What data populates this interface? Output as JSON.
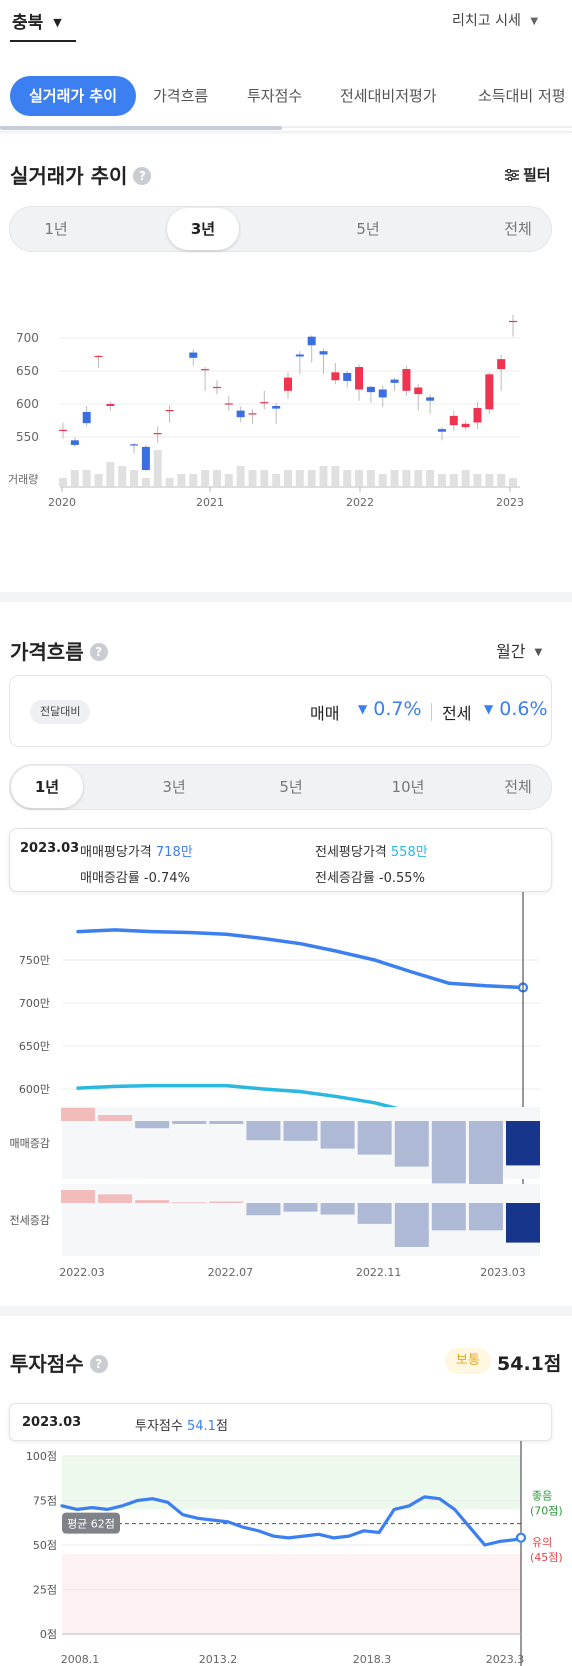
{
  "header": {
    "region": "충북",
    "menu": "리치고 시세"
  },
  "tabs": [
    "실거래가 추이",
    "가격흐름",
    "투자점수",
    "전세대비저평가",
    "소득대비 저평"
  ],
  "trade": {
    "title": "실거래가 추이",
    "filter": "필터",
    "periods": [
      "1년",
      "3년",
      "5년",
      "전체"
    ],
    "selected_period": "3년",
    "volume_label": "거래량"
  },
  "flow": {
    "title": "가격흐름",
    "period_select": "월간",
    "compare_badge": "전달대비",
    "sale_label": "매매",
    "sale_change": "0.7%",
    "jeonse_label": "전세",
    "jeonse_change": "0.6%",
    "periods": [
      "1년",
      "3년",
      "5년",
      "10년",
      "전체"
    ],
    "selected_period": "1년",
    "tooltip": {
      "date": "2023.03",
      "sale_avg_label": "매매평당가격",
      "sale_avg_value": "718만",
      "jeonse_avg_label": "전세평당가격",
      "jeonse_avg_value": "558만",
      "sale_rate": "매매증감률 -0.74%",
      "jeonse_rate": "전세증감률 -0.55%"
    },
    "sale_bar_label": "매매증감",
    "jeonse_bar_label": "전세증감"
  },
  "score": {
    "title": "투자점수",
    "badge": "보통",
    "value": "54.1점",
    "tooltip_date": "2023.03",
    "tooltip_label": "투자점수",
    "tooltip_value": "54.1",
    "tooltip_unit": "점",
    "avg_label": "평균 62점",
    "good_label": "좋음",
    "good_value": "(70점)",
    "caution_label": "유의",
    "caution_value": "(45점)"
  },
  "colors": {
    "accent": "#3b7ff0",
    "up": "#f0334f",
    "down": "#3b6ee0",
    "jeonse": "#2bb8e0",
    "bar_neg": "#aeb9d6",
    "bar_pos": "#f2bcbc",
    "bar_current": "#17358a"
  },
  "chart_data": [
    {
      "type": "candlestick",
      "title": "실거래가 추이",
      "x_ticks": [
        "2020",
        "2021",
        "2022",
        "2023"
      ],
      "y_ticks": [
        700,
        650,
        600,
        550
      ],
      "ylim": [
        530,
        735
      ],
      "candles": [
        {
          "i": 0,
          "o": 560,
          "c": 560,
          "h": 572,
          "l": 548
        },
        {
          "i": 1,
          "o": 545,
          "c": 538,
          "h": 550,
          "l": 535
        },
        {
          "i": 2,
          "o": 588,
          "c": 571,
          "h": 597,
          "l": 566
        },
        {
          "i": 3,
          "o": 672,
          "c": 672,
          "h": 674,
          "l": 655
        },
        {
          "i": 4,
          "o": 597,
          "c": 600,
          "h": 604,
          "l": 590
        },
        {
          "i": 6,
          "o": 538,
          "c": 536,
          "h": 541,
          "l": 525
        },
        {
          "i": 7,
          "o": 535,
          "c": 500,
          "h": 538,
          "l": 498
        },
        {
          "i": 8,
          "o": 555,
          "c": 555,
          "h": 566,
          "l": 541
        },
        {
          "i": 9,
          "o": 588,
          "c": 590,
          "h": 598,
          "l": 572
        },
        {
          "i": 11,
          "o": 678,
          "c": 670,
          "h": 683,
          "l": 658
        },
        {
          "i": 12,
          "o": 652,
          "c": 652,
          "h": 656,
          "l": 620
        },
        {
          "i": 13,
          "o": 625,
          "c": 625,
          "h": 636,
          "l": 615
        },
        {
          "i": 14,
          "o": 600,
          "c": 600,
          "h": 612,
          "l": 590
        },
        {
          "i": 15,
          "o": 590,
          "c": 580,
          "h": 596,
          "l": 572
        },
        {
          "i": 16,
          "o": 585,
          "c": 585,
          "h": 592,
          "l": 570
        },
        {
          "i": 17,
          "o": 600,
          "c": 602,
          "h": 620,
          "l": 592
        },
        {
          "i": 18,
          "o": 597,
          "c": 593,
          "h": 602,
          "l": 570
        },
        {
          "i": 19,
          "o": 620,
          "c": 640,
          "h": 648,
          "l": 608
        },
        {
          "i": 20,
          "o": 675,
          "c": 672,
          "h": 680,
          "l": 645
        },
        {
          "i": 21,
          "o": 702,
          "c": 689,
          "h": 704,
          "l": 663
        },
        {
          "i": 22,
          "o": 680,
          "c": 675,
          "h": 684,
          "l": 645
        },
        {
          "i": 23,
          "o": 636,
          "c": 648,
          "h": 662,
          "l": 630
        },
        {
          "i": 24,
          "o": 647,
          "c": 635,
          "h": 650,
          "l": 625
        },
        {
          "i": 25,
          "o": 622,
          "c": 656,
          "h": 660,
          "l": 605
        },
        {
          "i": 26,
          "o": 626,
          "c": 618,
          "h": 628,
          "l": 602
        },
        {
          "i": 27,
          "o": 622,
          "c": 610,
          "h": 628,
          "l": 595
        },
        {
          "i": 28,
          "o": 637,
          "c": 632,
          "h": 640,
          "l": 620
        },
        {
          "i": 29,
          "o": 620,
          "c": 653,
          "h": 658,
          "l": 612
        },
        {
          "i": 30,
          "o": 615,
          "c": 625,
          "h": 630,
          "l": 590
        },
        {
          "i": 31,
          "o": 610,
          "c": 605,
          "h": 615,
          "l": 585
        },
        {
          "i": 32,
          "o": 562,
          "c": 558,
          "h": 565,
          "l": 545
        },
        {
          "i": 33,
          "o": 568,
          "c": 582,
          "h": 590,
          "l": 560
        },
        {
          "i": 34,
          "o": 565,
          "c": 570,
          "h": 575,
          "l": 560
        },
        {
          "i": 35,
          "o": 572,
          "c": 594,
          "h": 603,
          "l": 562
        },
        {
          "i": 36,
          "o": 592,
          "c": 645,
          "h": 648,
          "l": 585
        },
        {
          "i": 37,
          "o": 653,
          "c": 668,
          "h": 675,
          "l": 620
        },
        {
          "i": 38,
          "o": 725,
          "c": 725,
          "h": 735,
          "l": 702
        }
      ],
      "volume": [
        2,
        4,
        4,
        3,
        6,
        5,
        4,
        2,
        9,
        2,
        3,
        3,
        4,
        4,
        3,
        5,
        4,
        4,
        3,
        4,
        4,
        4,
        5,
        5,
        4,
        4,
        4,
        3,
        4,
        4,
        4,
        4,
        3,
        3,
        4,
        3,
        3,
        3,
        2
      ]
    },
    {
      "type": "line",
      "title": "가격흐름",
      "categories": [
        "2022.03",
        "2022.04",
        "2022.05",
        "2022.06",
        "2022.07",
        "2022.08",
        "2022.09",
        "2022.10",
        "2022.11",
        "2022.12",
        "2023.01",
        "2023.02",
        "2023.03"
      ],
      "x_ticks": [
        "2022.03",
        "2022.07",
        "2022.11",
        "2023.03"
      ],
      "y_ticks": [
        "750만",
        "700만",
        "650만",
        "600만"
      ],
      "ylim": [
        560,
        800
      ],
      "series": [
        {
          "name": "매매평당가격",
          "values": [
            783,
            785,
            783,
            782,
            780,
            775,
            769,
            760,
            750,
            736,
            723,
            720,
            718
          ]
        },
        {
          "name": "전세평당가격",
          "values": [
            601,
            603,
            604,
            604,
            604,
            600,
            597,
            591,
            584,
            573,
            565,
            561,
            558
          ]
        }
      ],
      "bars": [
        {
          "name": "매매증감",
          "values": [
            0.22,
            0.1,
            -0.12,
            -0.05,
            -0.05,
            -0.32,
            -0.33,
            -0.46,
            -0.56,
            -0.76,
            -1.04,
            -1.08,
            -0.74
          ]
        },
        {
          "name": "전세증감",
          "values": [
            0.18,
            0.12,
            0.04,
            0.01,
            0.02,
            -0.17,
            -0.12,
            -0.16,
            -0.29,
            -0.61,
            -0.38,
            -0.38,
            -0.55
          ]
        }
      ]
    },
    {
      "type": "line",
      "title": "투자점수",
      "x_ticks": [
        "2008.1",
        "2013.2",
        "2018.3",
        "2023.3"
      ],
      "y_ticks": [
        "100점",
        "75점",
        "50점",
        "25점",
        "0점"
      ],
      "ylim": [
        0,
        100
      ],
      "average": 62,
      "good_threshold": 70,
      "caution_threshold": 45,
      "x": [
        2008.0,
        2008.5,
        2009.0,
        2009.5,
        2010.0,
        2010.5,
        2011.0,
        2011.5,
        2012.0,
        2012.5,
        2013.0,
        2013.5,
        2014.0,
        2014.5,
        2015.0,
        2015.5,
        2016.0,
        2016.5,
        2017.0,
        2017.5,
        2018.0,
        2018.5,
        2019.0,
        2019.5,
        2020.0,
        2020.5,
        2021.0,
        2021.5,
        2022.0,
        2022.5,
        2023.0,
        2023.2
      ],
      "values": [
        72,
        70,
        71,
        70,
        72,
        75,
        76,
        74,
        67,
        65,
        64,
        63,
        60,
        58,
        55,
        54,
        55,
        56,
        54,
        55,
        58,
        57,
        70,
        72,
        77,
        76,
        70,
        60,
        50,
        52,
        53,
        54.1
      ]
    }
  ]
}
